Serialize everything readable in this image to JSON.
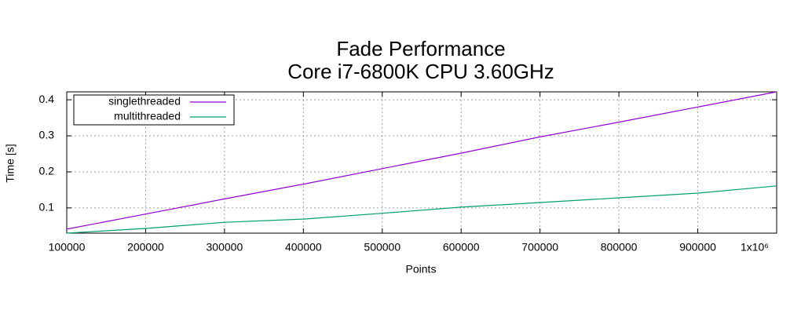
{
  "chart_data": {
    "type": "line",
    "title": "Fade Performance",
    "subtitle": "Core i7-6800K CPU  3.60GHz",
    "xlabel": "Points",
    "ylabel": "Time [s]",
    "x": [
      100000,
      200000,
      300000,
      400000,
      500000,
      600000,
      700000,
      800000,
      900000,
      1000000
    ],
    "series": [
      {
        "name": "singlethreaded",
        "color": "#9400d3",
        "values": [
          0.041,
          0.083,
          0.125,
          0.166,
          0.209,
          0.252,
          0.297,
          0.338,
          0.38,
          0.422
        ]
      },
      {
        "name": "multithreaded",
        "color": "#009e73",
        "values": [
          0.03,
          0.043,
          0.06,
          0.069,
          0.085,
          0.102,
          0.115,
          0.128,
          0.141,
          0.161
        ]
      }
    ],
    "xlim": [
      100000,
      1000000
    ],
    "ylim": [
      0.03,
      0.422
    ],
    "xticks": [
      100000,
      200000,
      300000,
      400000,
      500000,
      600000,
      700000,
      800000,
      900000,
      {
        "value": 1000000,
        "label": "1x10⁶"
      }
    ],
    "yticks": [
      0.1,
      0.2,
      0.3,
      0.4
    ],
    "grid": true,
    "legend": "top-left"
  }
}
